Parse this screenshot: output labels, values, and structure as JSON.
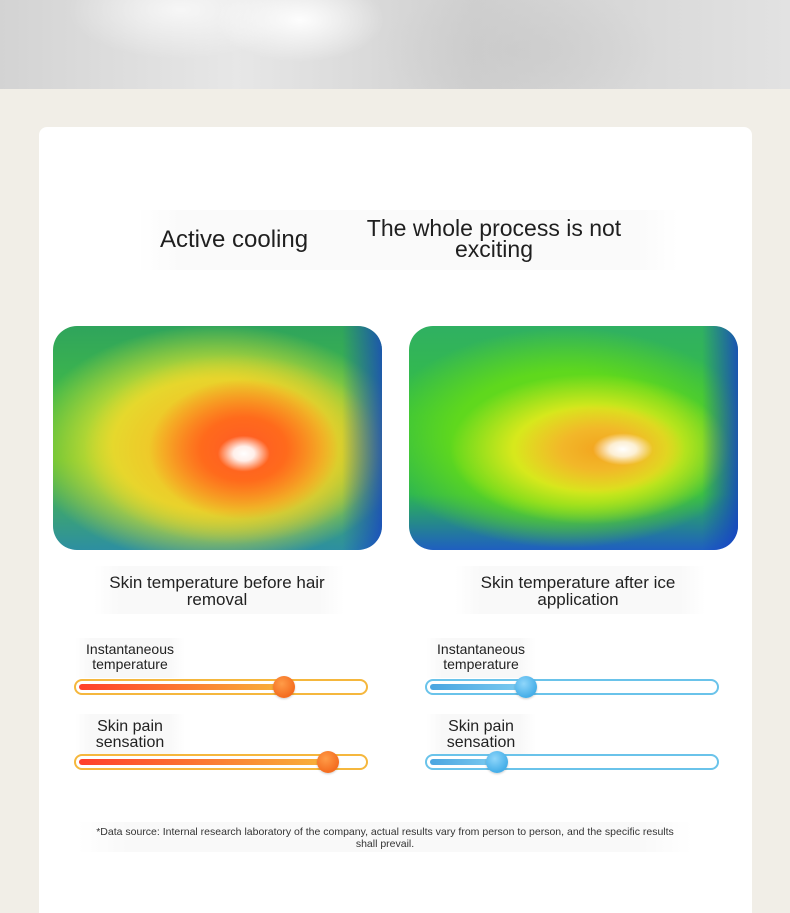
{
  "headline": {
    "left": "Active cooling",
    "right": "The whole process is not exciting"
  },
  "panels": [
    {
      "caption": "Skin temperature before hair removal",
      "theme": "orange",
      "colors": {
        "track": "#f5b73d",
        "fill_start": "#ff3f2a",
        "fill_end": "#f8b43a",
        "knob": "#f46c1f"
      },
      "sliders": [
        {
          "label": "Instantaneous temperature",
          "value_percent": 72
        },
        {
          "label": "Skin pain sensation",
          "value_percent": 87
        }
      ]
    },
    {
      "caption": "Skin temperature after ice application",
      "theme": "blue",
      "colors": {
        "track": "#6ac3ea",
        "fill_start": "#4aa5e0",
        "fill_end": "#7fcdf1",
        "knob": "#45aee8"
      },
      "sliders": [
        {
          "label": "Instantaneous temperature",
          "value_percent": 34
        },
        {
          "label": "Skin pain sensation",
          "value_percent": 24
        }
      ]
    }
  ],
  "footnote": "*Data source: Internal research laboratory of the company, actual results vary from person to person, and the specific results shall prevail."
}
